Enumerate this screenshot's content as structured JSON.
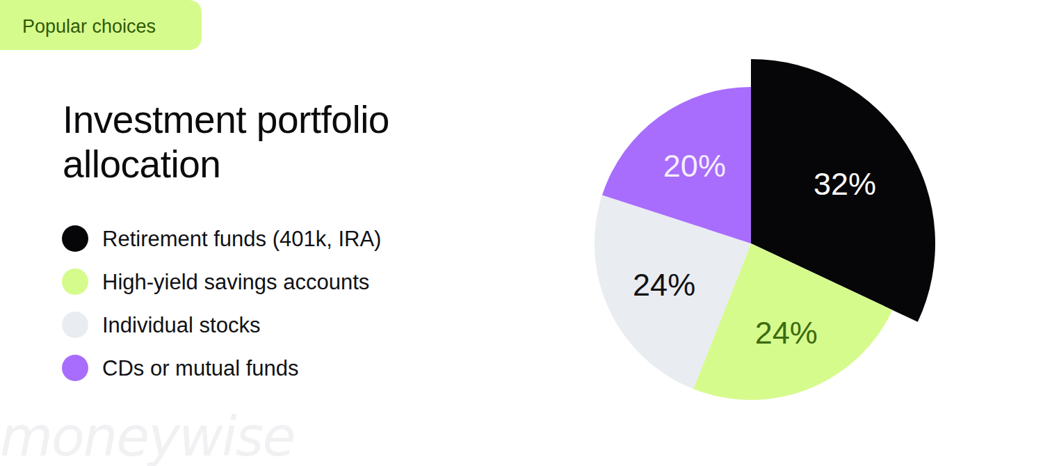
{
  "chart_data": {
    "type": "pie",
    "title": "Investment portfolio allocation",
    "annotations": [
      "Popular choices",
      "moneywise"
    ],
    "categories": [
      "Retirement funds (401k, IRA)",
      "High-yield savings accounts",
      "Individual stocks",
      "CDs or mutual funds"
    ],
    "values": [
      32,
      24,
      24,
      20
    ],
    "value_labels": [
      "32%",
      "24%",
      "24%",
      "20%"
    ],
    "colors": [
      "#060608",
      "#d6fb8d",
      "#e9ecf1",
      "#a86dfc"
    ],
    "data_labels": true,
    "legend": "left"
  }
}
